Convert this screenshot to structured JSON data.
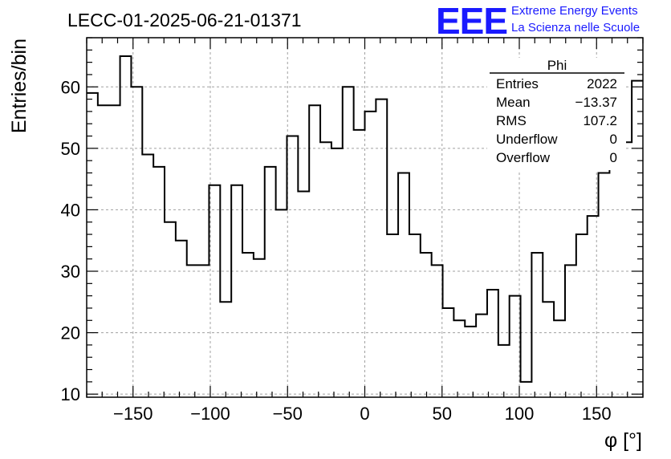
{
  "chart_data": {
    "type": "histogram",
    "title": "LECC-01-2025-06-21-01371",
    "xlabel": "φ [°]",
    "ylabel": "Entries/bin",
    "xlim": [
      -180,
      180
    ],
    "ylim": [
      9.5,
      68
    ],
    "x_ticks": [
      -150,
      -100,
      -50,
      0,
      50,
      100,
      150
    ],
    "x_tick_labels": [
      "−150",
      "−100",
      "−50",
      "0",
      "50",
      "100",
      "150"
    ],
    "y_ticks": [
      10,
      20,
      30,
      40,
      50,
      60
    ],
    "y_tick_labels": [
      "10",
      "20",
      "30",
      "40",
      "50",
      "60"
    ],
    "grid": true,
    "bin_edges_start": -180,
    "bin_width": 7.2,
    "values": [
      59,
      57,
      57,
      65,
      60,
      49,
      47,
      38,
      35,
      31,
      31,
      44,
      25,
      44,
      33,
      32,
      47,
      40,
      52,
      43,
      57,
      51,
      50,
      60,
      53,
      56,
      58,
      36,
      46,
      36,
      33,
      31,
      24,
      22,
      21,
      23,
      27,
      18,
      26,
      12,
      33,
      25,
      22,
      31,
      36,
      39,
      46,
      49,
      51,
      61
    ],
    "stats_box": {
      "title": "Phi",
      "rows": [
        {
          "label": "Entries",
          "value": "2022"
        },
        {
          "label": "Mean",
          "value": "−13.37"
        },
        {
          "label": "RMS",
          "value": "107.2"
        },
        {
          "label": "Underflow",
          "value": "0"
        },
        {
          "label": "Overflow",
          "value": "0"
        }
      ]
    }
  },
  "logo": {
    "big": "EEE",
    "line1": "Extreme Energy Events",
    "line2": "La Scienza nelle Scuole"
  }
}
